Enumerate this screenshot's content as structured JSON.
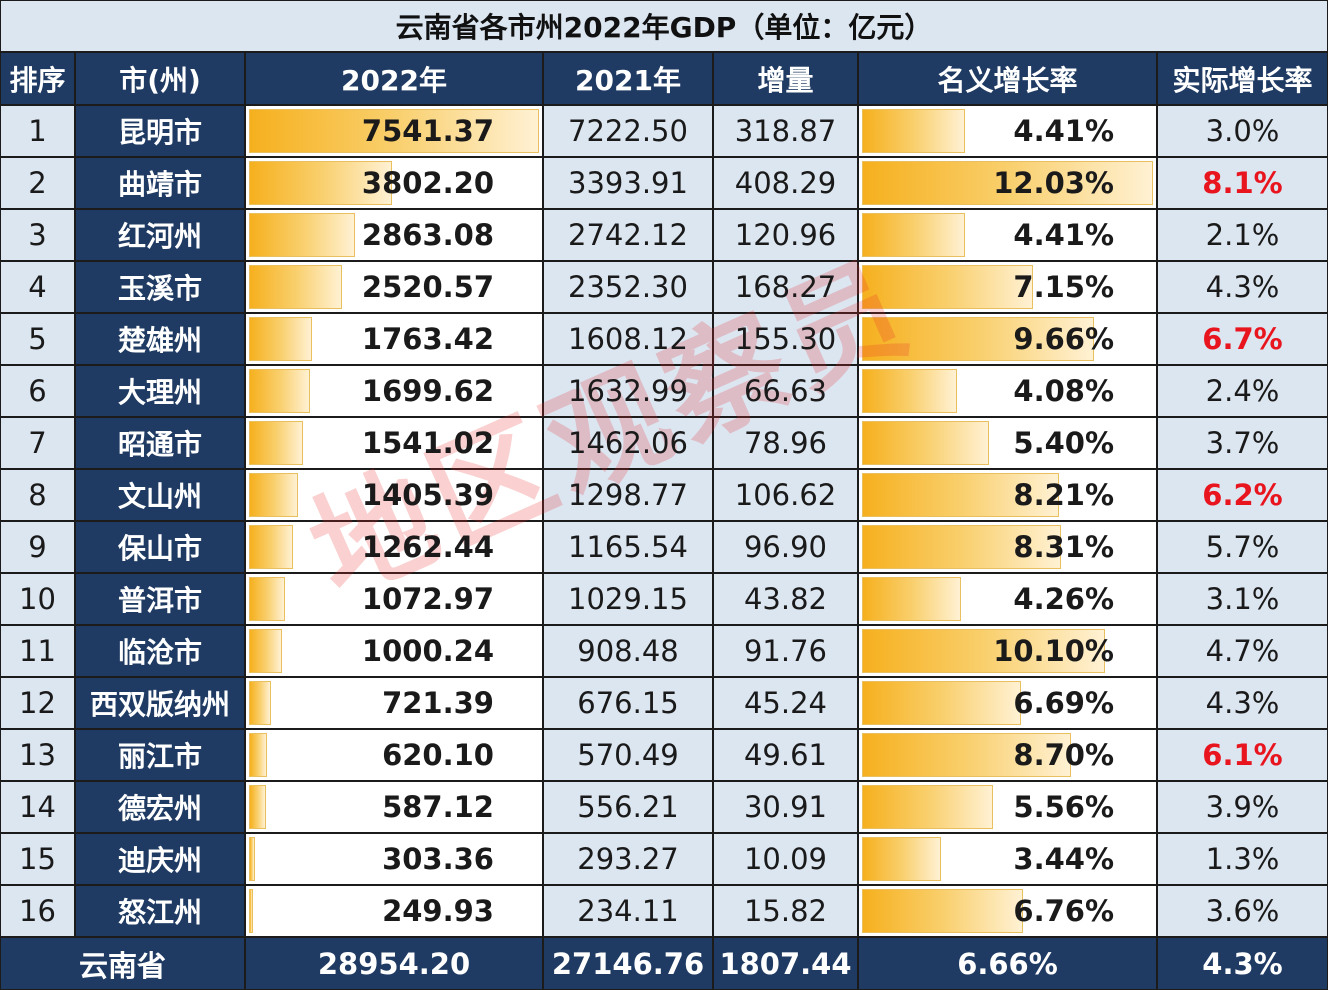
{
  "title": "云南省各市州2022年GDP（单位：亿元）",
  "headers": [
    "排序",
    "市(州)",
    "2022年",
    "2021年",
    "增量",
    "名义增长率",
    "实际增长率"
  ],
  "rows": [
    {
      "rank": "1",
      "city": "昆明市",
      "gdp2022": "7541.37",
      "gdp2021": "7222.50",
      "increase": "318.87",
      "nominal": "4.41%",
      "real": "3.0%",
      "real_highlight": false
    },
    {
      "rank": "2",
      "city": "曲靖市",
      "gdp2022": "3802.20",
      "gdp2021": "3393.91",
      "increase": "408.29",
      "nominal": "12.03%",
      "real": "8.1%",
      "real_highlight": true
    },
    {
      "rank": "3",
      "city": "红河州",
      "gdp2022": "2863.08",
      "gdp2021": "2742.12",
      "increase": "120.96",
      "nominal": "4.41%",
      "real": "2.1%",
      "real_highlight": false
    },
    {
      "rank": "4",
      "city": "玉溪市",
      "gdp2022": "2520.57",
      "gdp2021": "2352.30",
      "increase": "168.27",
      "nominal": "7.15%",
      "real": "4.3%",
      "real_highlight": false
    },
    {
      "rank": "5",
      "city": "楚雄州",
      "gdp2022": "1763.42",
      "gdp2021": "1608.12",
      "increase": "155.30",
      "nominal": "9.66%",
      "real": "6.7%",
      "real_highlight": true
    },
    {
      "rank": "6",
      "city": "大理州",
      "gdp2022": "1699.62",
      "gdp2021": "1632.99",
      "increase": "66.63",
      "nominal": "4.08%",
      "real": "2.4%",
      "real_highlight": false
    },
    {
      "rank": "7",
      "city": "昭通市",
      "gdp2022": "1541.02",
      "gdp2021": "1462.06",
      "increase": "78.96",
      "nominal": "5.40%",
      "real": "3.7%",
      "real_highlight": false
    },
    {
      "rank": "8",
      "city": "文山州",
      "gdp2022": "1405.39",
      "gdp2021": "1298.77",
      "increase": "106.62",
      "nominal": "8.21%",
      "real": "6.2%",
      "real_highlight": true
    },
    {
      "rank": "9",
      "city": "保山市",
      "gdp2022": "1262.44",
      "gdp2021": "1165.54",
      "increase": "96.90",
      "nominal": "8.31%",
      "real": "5.7%",
      "real_highlight": false
    },
    {
      "rank": "10",
      "city": "普洱市",
      "gdp2022": "1072.97",
      "gdp2021": "1029.15",
      "increase": "43.82",
      "nominal": "4.26%",
      "real": "3.1%",
      "real_highlight": false
    },
    {
      "rank": "11",
      "city": "临沧市",
      "gdp2022": "1000.24",
      "gdp2021": "908.48",
      "increase": "91.76",
      "nominal": "10.10%",
      "real": "4.7%",
      "real_highlight": false
    },
    {
      "rank": "12",
      "city": "西双版纳州",
      "gdp2022": "721.39",
      "gdp2021": "676.15",
      "increase": "45.24",
      "nominal": "6.69%",
      "real": "4.3%",
      "real_highlight": false
    },
    {
      "rank": "13",
      "city": "丽江市",
      "gdp2022": "620.10",
      "gdp2021": "570.49",
      "increase": "49.61",
      "nominal": "8.70%",
      "real": "6.1%",
      "real_highlight": true
    },
    {
      "rank": "14",
      "city": "德宏州",
      "gdp2022": "587.12",
      "gdp2021": "556.21",
      "increase": "30.91",
      "nominal": "5.56%",
      "real": "3.9%",
      "real_highlight": false
    },
    {
      "rank": "15",
      "city": "迪庆州",
      "gdp2022": "303.36",
      "gdp2021": "293.27",
      "increase": "10.09",
      "nominal": "3.44%",
      "real": "1.3%",
      "real_highlight": false
    },
    {
      "rank": "16",
      "city": "怒江州",
      "gdp2022": "249.93",
      "gdp2021": "234.11",
      "increase": "15.82",
      "nominal": "6.76%",
      "real": "3.6%",
      "real_highlight": false
    }
  ],
  "total": {
    "label": "云南省",
    "gdp2022": "28954.20",
    "gdp2021": "27146.76",
    "increase": "1807.44",
    "nominal": "6.66%",
    "real": "4.3%"
  },
  "watermark": "地区观察员",
  "colors": {
    "header": "#1f3b63",
    "light": "#dce6f1",
    "bar": "#f6b01e",
    "highlight": "#e8141e"
  }
}
